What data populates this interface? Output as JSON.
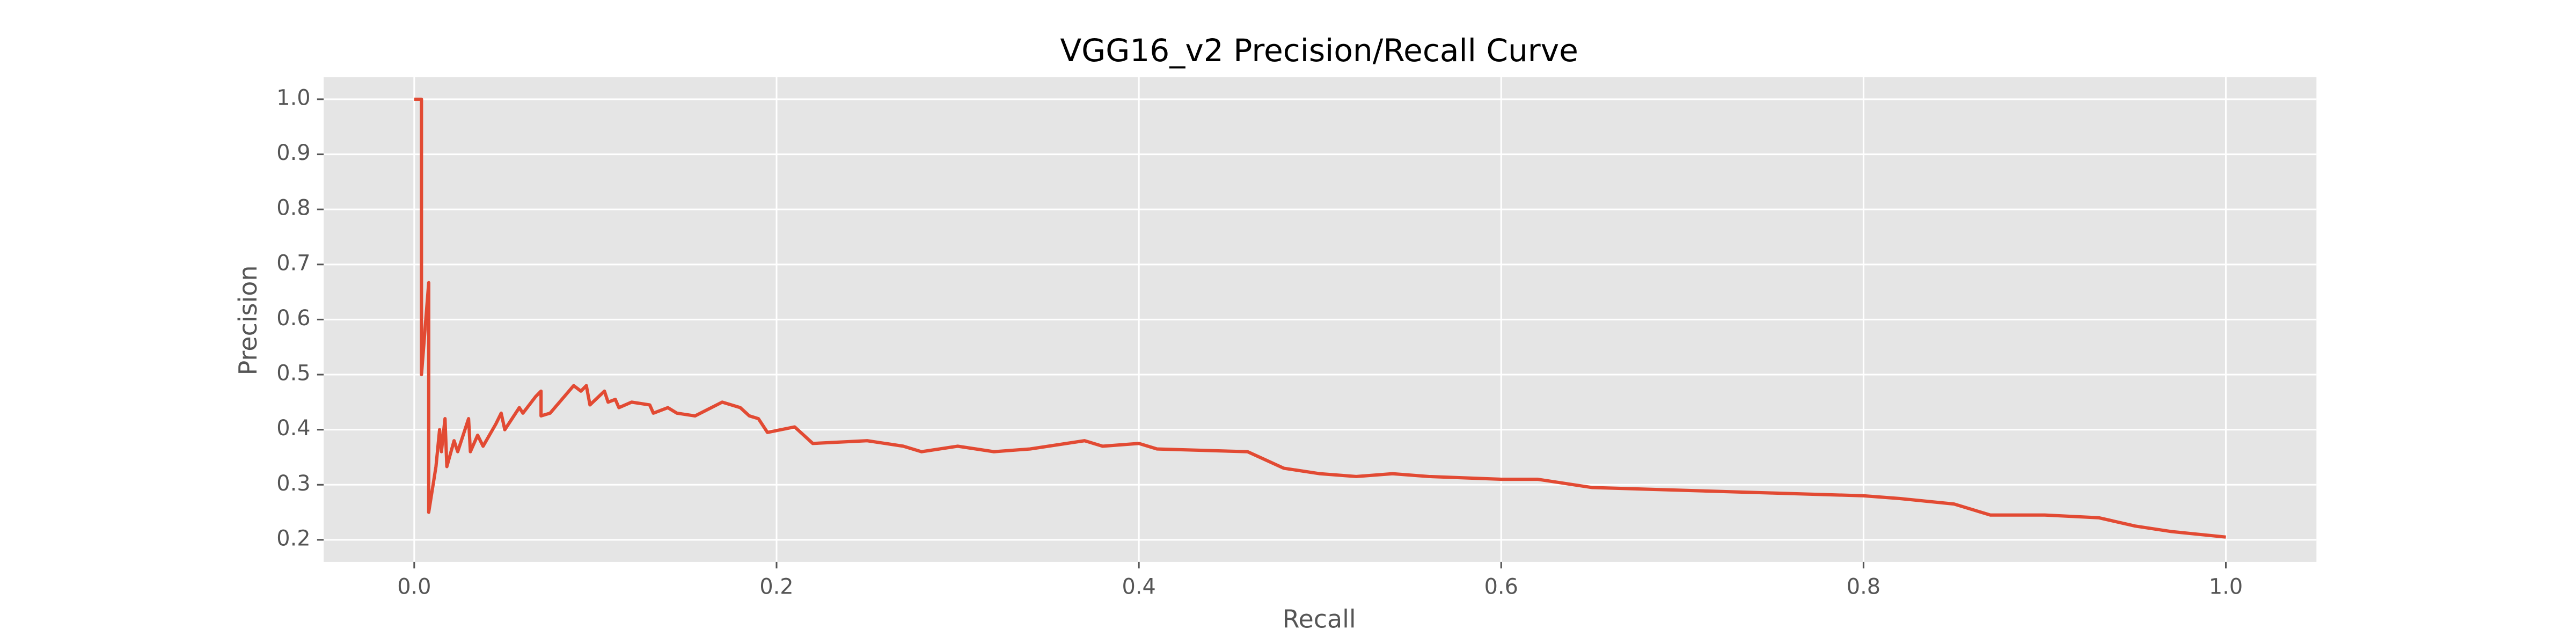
{
  "chart_data": {
    "type": "line",
    "title": "VGG16_v2 Precision/Recall Curve",
    "x_label": "Recall",
    "y_label": "Precision",
    "color": "#E24A33",
    "grid": true,
    "xlim": [
      -0.05,
      1.05
    ],
    "ylim": [
      0.16,
      1.04
    ],
    "xticks": [
      {
        "value": 0,
        "label": "0.0"
      },
      0.2,
      0.4,
      0.6,
      0.8,
      {
        "value": 1,
        "label": "1.0"
      }
    ],
    "yticks": [
      0.2,
      0.3,
      0.4,
      0.5,
      0.6,
      0.7,
      0.8,
      0.9,
      {
        "value": 1,
        "label": "1.0"
      }
    ],
    "x": [
      0,
      0.004,
      0.004,
      0.008,
      0.008,
      0.012,
      0.014,
      0.015,
      0.017,
      0.018,
      0.022,
      0.024,
      0.03,
      0.031,
      0.035,
      0.038,
      0.045,
      0.048,
      0.05,
      0.058,
      0.06,
      0.067,
      0.07,
      0.07,
      0.075,
      0.088,
      0.092,
      0.095,
      0.097,
      0.105,
      0.107,
      0.111,
      0.113,
      0.12,
      0.13,
      0.132,
      0.14,
      0.145,
      0.155,
      0.17,
      0.18,
      0.185,
      0.19,
      0.195,
      0.21,
      0.215,
      0.22,
      0.25,
      0.27,
      0.28,
      0.3,
      0.32,
      0.34,
      0.37,
      0.38,
      0.4,
      0.41,
      0.46,
      0.47,
      0.48,
      0.5,
      0.52,
      0.54,
      0.56,
      0.6,
      0.62,
      0.65,
      0.7,
      0.75,
      0.8,
      0.82,
      0.85,
      0.87,
      0.9,
      0.93,
      0.95,
      0.97,
      1.0
    ],
    "values": [
      1.0,
      1.0,
      0.5,
      0.667,
      0.25,
      0.333,
      0.4,
      0.36,
      0.42,
      0.333,
      0.38,
      0.36,
      0.42,
      0.36,
      0.39,
      0.37,
      0.41,
      0.43,
      0.4,
      0.44,
      0.43,
      0.46,
      0.47,
      0.425,
      0.43,
      0.48,
      0.47,
      0.48,
      0.445,
      0.47,
      0.45,
      0.455,
      0.44,
      0.45,
      0.445,
      0.43,
      0.44,
      0.43,
      0.425,
      0.45,
      0.44,
      0.425,
      0.42,
      0.395,
      0.405,
      0.39,
      0.375,
      0.38,
      0.37,
      0.36,
      0.37,
      0.36,
      0.365,
      0.38,
      0.37,
      0.375,
      0.365,
      0.36,
      0.345,
      0.33,
      0.32,
      0.315,
      0.32,
      0.315,
      0.31,
      0.31,
      0.295,
      0.29,
      0.285,
      0.28,
      0.275,
      0.265,
      0.245,
      0.245,
      0.24,
      0.225,
      0.215,
      0.205
    ]
  }
}
